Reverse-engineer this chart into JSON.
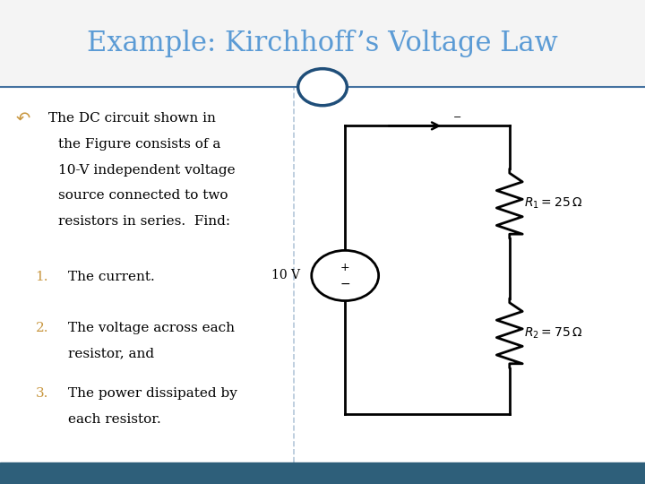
{
  "title": "Example: Kirchhoff’s Voltage Law",
  "title_color": "#5B9BD5",
  "title_fontsize": 22,
  "bg_color": "#FFFFFF",
  "footer_color": "#2E5F7A",
  "divider_color": "#4472A0",
  "bullet_icon_color": "#C8963E",
  "bullet_text_color": "#000000",
  "numbered_color": "#C8963E",
  "circle_color": "#1F4E79",
  "bullet_text_line0": "The DC circuit shown in",
  "bullet_text_lines": [
    "the Figure consists of a",
    "10-V independent voltage",
    "source connected to two",
    "resistors in series.  Find:"
  ],
  "items": [
    [
      "The current."
    ],
    [
      "The voltage across each",
      "resistor, and"
    ],
    [
      "The power dissipated by",
      "each resistor."
    ]
  ],
  "R1_label": "$R_1 = 25\\,\\Omega$",
  "R2_label": "$R_2 = 75\\,\\Omega$",
  "V_label": "10 V",
  "wire_color": "#000000"
}
